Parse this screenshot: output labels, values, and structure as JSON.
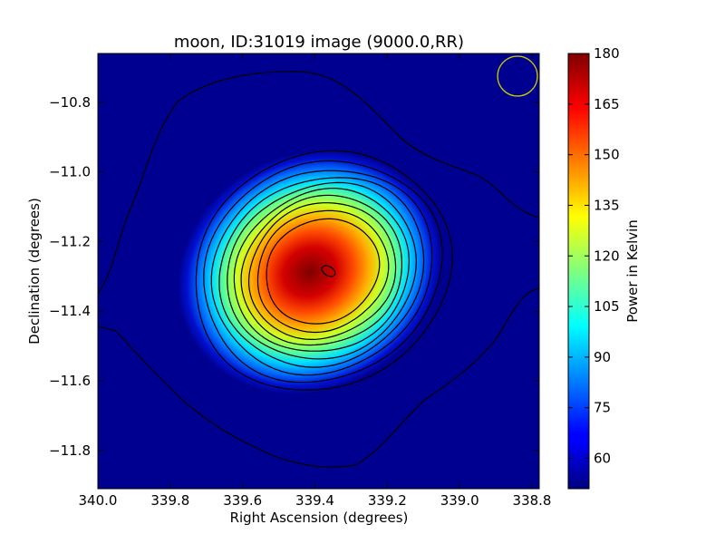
{
  "chart_data": {
    "type": "heatmap",
    "title": "moon, ID:31019 image (9000.0,RR)",
    "xlabel": "Right Ascension (degrees)",
    "ylabel": "Declination (degrees)",
    "xlim": [
      340.0,
      338.78
    ],
    "ylim": [
      -11.91,
      -10.66
    ],
    "x_ticks": [
      340.0,
      339.8,
      339.6,
      339.4,
      339.2,
      339.0,
      338.8
    ],
    "x_tick_labels": [
      "340.0",
      "339.8",
      "339.6",
      "339.4",
      "339.2",
      "339.0",
      "338.8"
    ],
    "y_ticks": [
      -10.8,
      -11.0,
      -11.2,
      -11.4,
      -11.6,
      -11.8
    ],
    "y_tick_labels": [
      "−10.8",
      "−11.0",
      "−11.2",
      "−11.4",
      "−11.6",
      "−11.8"
    ],
    "colorbar": {
      "label": "Power in Kelvin",
      "min": 51,
      "max": 180,
      "ticks": [
        60,
        75,
        90,
        105,
        120,
        135,
        150,
        165,
        180
      ],
      "tick_labels": [
        "60",
        "75",
        "90",
        "105",
        "120",
        "135",
        "150",
        "165",
        "180"
      ],
      "colormap": "jet"
    },
    "source": {
      "center_ra": 339.38,
      "center_dec": -11.285,
      "peak_kelvin": 180,
      "background_kelvin": 53
    },
    "contours": true,
    "beam_marker": {
      "ra": 338.84,
      "dec": -10.725,
      "radius_deg": 0.055,
      "color": "#c8c800"
    },
    "colors": {
      "contour": "#000000",
      "frame": "#000000"
    }
  }
}
